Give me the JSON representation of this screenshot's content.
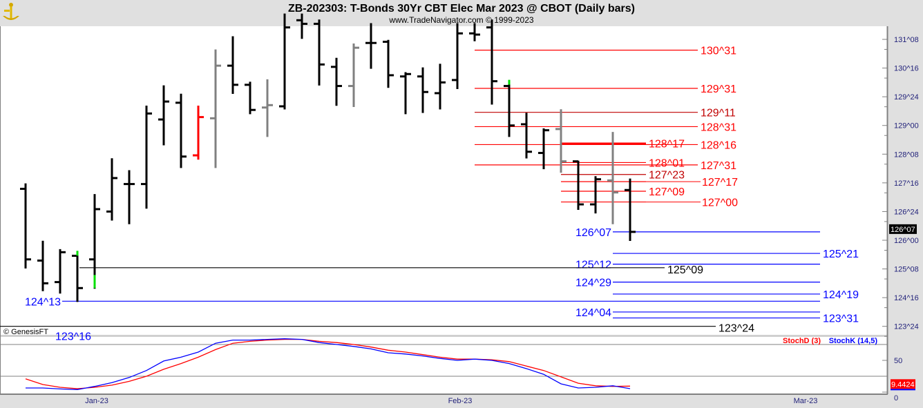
{
  "header": {
    "title": "ZB-202303:  T-Bonds 30Yr CBT Elec Mar 2023 @ CBOT  (Daily bars)",
    "subtitle": "www.TradeNavigator.com © 1999-2023",
    "logo_icon": "golden-anchor-logo"
  },
  "copyright": "© GenesisFT",
  "colors": {
    "up_bar": "#000000",
    "gray_bar": "#808080",
    "red_bar": "#ff0000",
    "green_mark": "#00e000",
    "level_red": "#ff0000",
    "level_blue": "#0000ff",
    "level_black": "#000000",
    "stoch_d": "#ff0000",
    "stoch_k": "#0000ff",
    "price_tag_bg": "#000000",
    "stoch_tag_bg": "#ff0000"
  },
  "chart_data": [
    {
      "type": "ohlc",
      "price_format": "32nds",
      "y_ticks": [
        "131^08",
        "130^16",
        "129^24",
        "129^00",
        "128^08",
        "127^16",
        "126^24",
        "126^00",
        "125^08",
        "124^16",
        "123^24"
      ],
      "current_price": "126^07",
      "x_labels": [
        "Jan-23",
        "Feb-23",
        "Mar-23"
      ],
      "bars": [
        {
          "o": "127^11",
          "h": "127^15",
          "l": "125^09",
          "c": "125^16",
          "color": "black"
        },
        {
          "o": "125^15",
          "h": "125^31",
          "l": "124^22",
          "c": "124^28",
          "color": "black"
        },
        {
          "o": "124^29",
          "h": "125^24",
          "l": "124^20",
          "c": "125^22",
          "color": "black"
        },
        {
          "o": "125^19",
          "h": "125^22",
          "l": "124^13",
          "c": "124^24",
          "color": "black",
          "mark": "green-high"
        },
        {
          "o": "125^16",
          "h": "127^06",
          "l": "124^24",
          "c": "126^26",
          "color": "black",
          "mark": "green-low"
        },
        {
          "o": "126^24",
          "h": "128^04",
          "l": "126^17",
          "c": "127^20",
          "color": "black"
        },
        {
          "o": "127^15",
          "h": "127^26",
          "l": "126^14",
          "c": "127^15",
          "color": "black"
        },
        {
          "o": "127^15",
          "h": "129^16",
          "l": "126^27",
          "c": "129^10",
          "color": "black"
        },
        {
          "o": "129^05",
          "h": "130^01",
          "l": "128^16",
          "c": "129^20",
          "color": "black"
        },
        {
          "o": "129^19",
          "h": "129^26",
          "l": "127^29",
          "c": "128^06",
          "color": "black"
        },
        {
          "o": "128^07",
          "h": "129^16",
          "l": "128^04",
          "c": "129^07",
          "color": "red"
        },
        {
          "o": "129^06",
          "h": "130^31",
          "l": "127^29",
          "c": "130^18",
          "color": "gray"
        },
        {
          "o": "130^18",
          "h": "131^10",
          "l": "129^27",
          "c": "130^02",
          "color": "black"
        },
        {
          "o": "130^02",
          "h": "130^04",
          "l": "129^10",
          "c": "129^13",
          "color": "black"
        },
        {
          "o": "129^15",
          "h": "130^06",
          "l": "128^23",
          "c": "129^17",
          "color": "gray"
        },
        {
          "o": "129^16",
          "h": "131^29",
          "l": "129^14",
          "c": "131^18",
          "color": "black"
        },
        {
          "o": "131^24",
          "h": "131^29",
          "l": "131^09",
          "c": "131^21",
          "color": "black"
        },
        {
          "o": "131^21",
          "h": "131^24",
          "l": "130^02",
          "c": "130^19",
          "color": "black"
        },
        {
          "o": "130^17",
          "h": "130^24",
          "l": "129^17",
          "c": "130^01",
          "color": "black"
        },
        {
          "o": "130^01",
          "h": "131^04",
          "l": "129^16",
          "c": "131^01",
          "color": "gray"
        },
        {
          "o": "131^05",
          "h": "131^21",
          "l": "130^16",
          "c": "131^05",
          "color": "black"
        },
        {
          "o": "131^06",
          "h": "131^07",
          "l": "130^00",
          "c": "130^10",
          "color": "black"
        },
        {
          "o": "130^09",
          "h": "130^12",
          "l": "129^10",
          "c": "130^11",
          "color": "black"
        },
        {
          "o": "130^09",
          "h": "130^16",
          "l": "129^11",
          "c": "129^28",
          "color": "black"
        },
        {
          "o": "129^27",
          "h": "130^19",
          "l": "129^14",
          "c": "130^04",
          "color": "black"
        },
        {
          "o": "130^06",
          "h": "131^21",
          "l": "129^31",
          "c": "131^13",
          "color": "black"
        },
        {
          "o": "131^13",
          "h": "131^21",
          "l": "131^07",
          "c": "131^12",
          "color": "black"
        },
        {
          "o": "131^18",
          "h": "131^24",
          "l": "129^18",
          "c": "130^05",
          "color": "black"
        },
        {
          "o": "130^01",
          "h": "130^05",
          "l": "128^23",
          "c": "129^00",
          "color": "black",
          "mark": "green-high"
        },
        {
          "o": "129^01",
          "h": "129^10",
          "l": "128^05",
          "c": "128^10",
          "color": "black"
        },
        {
          "o": "128^09",
          "h": "128^29",
          "l": "127^28",
          "c": "128^28",
          "color": "black"
        },
        {
          "o": "128^29",
          "h": "129^13",
          "l": "127^25",
          "c": "128^02",
          "color": "gray"
        },
        {
          "o": "128^02",
          "h": "128^02",
          "l": "126^26",
          "c": "126^30",
          "color": "black"
        },
        {
          "o": "126^30",
          "h": "127^21",
          "l": "126^23",
          "c": "127^19",
          "color": "black"
        },
        {
          "o": "127^18",
          "h": "128^26",
          "l": "126^14",
          "c": "127^08",
          "color": "gray"
        },
        {
          "o": "127^10",
          "h": "127^19",
          "l": "126^00",
          "c": "126^07",
          "color": "black"
        }
      ],
      "levels": [
        {
          "label": "130^31",
          "color": "red",
          "group": "upper"
        },
        {
          "label": "129^31",
          "color": "red",
          "group": "upper"
        },
        {
          "label": "129^11",
          "color": "darkred",
          "group": "upper"
        },
        {
          "label": "128^31",
          "color": "red",
          "group": "upper"
        },
        {
          "label": "128^16",
          "color": "red",
          "group": "upper"
        },
        {
          "label": "127^31",
          "color": "red",
          "group": "upper"
        },
        {
          "label": "128^17",
          "color": "red",
          "group": "inner",
          "bold": true
        },
        {
          "label": "128^01",
          "color": "red",
          "group": "inner"
        },
        {
          "label": "127^23",
          "color": "darkred",
          "group": "inner"
        },
        {
          "label": "127^17",
          "color": "red",
          "group": "inner"
        },
        {
          "label": "127^09",
          "color": "red",
          "group": "inner"
        },
        {
          "label": "127^00",
          "color": "red",
          "group": "inner"
        },
        {
          "label": "126^07",
          "color": "blue",
          "group": "blue-left"
        },
        {
          "label": "125^21",
          "color": "blue",
          "group": "blue-right"
        },
        {
          "label": "125^12",
          "color": "blue",
          "group": "blue-left"
        },
        {
          "label": "125^09",
          "color": "black",
          "group": "black-a"
        },
        {
          "label": "124^29",
          "color": "blue",
          "group": "blue-left"
        },
        {
          "label": "124^19",
          "color": "blue",
          "group": "blue-right"
        },
        {
          "label": "124^13",
          "color": "blue",
          "group": "blue-long"
        },
        {
          "label": "124^04",
          "color": "blue",
          "group": "blue-left"
        },
        {
          "label": "123^31",
          "color": "blue",
          "group": "blue-right"
        },
        {
          "label": "123^24",
          "color": "black",
          "group": "black-b"
        },
        {
          "label": "123^16",
          "color": "blue",
          "group": "far-left"
        }
      ]
    },
    {
      "type": "line",
      "legend": [
        "StochD (3)",
        "StochK (14,5)"
      ],
      "y_ticks": [
        "50",
        "0"
      ],
      "ref_lines": [
        75,
        25
      ],
      "ylim": [
        0,
        100
      ],
      "current_value": "9.4424",
      "series": [
        {
          "name": "StochD (3)",
          "color": "#ff0000",
          "values": [
            21,
            12,
            7.6,
            5.4,
            7.6,
            11,
            17,
            25,
            36,
            45,
            55,
            67,
            77,
            80,
            82,
            83,
            83,
            80,
            78,
            75,
            71,
            66,
            63,
            59,
            55,
            52,
            52,
            51,
            48,
            41,
            34,
            24,
            14,
            10,
            9,
            9.4424
          ]
        },
        {
          "name": "StochK (14,5)",
          "color": "#0000ff",
          "values": [
            6.5,
            6.5,
            5,
            4,
            9,
            15,
            23,
            34,
            49,
            55,
            63,
            77,
            82,
            82,
            83,
            84,
            83,
            78,
            75,
            72,
            68,
            62,
            60,
            57,
            53,
            50,
            52,
            50,
            45,
            37,
            28,
            13,
            6.5,
            7.6,
            10,
            5.4
          ]
        }
      ]
    }
  ]
}
